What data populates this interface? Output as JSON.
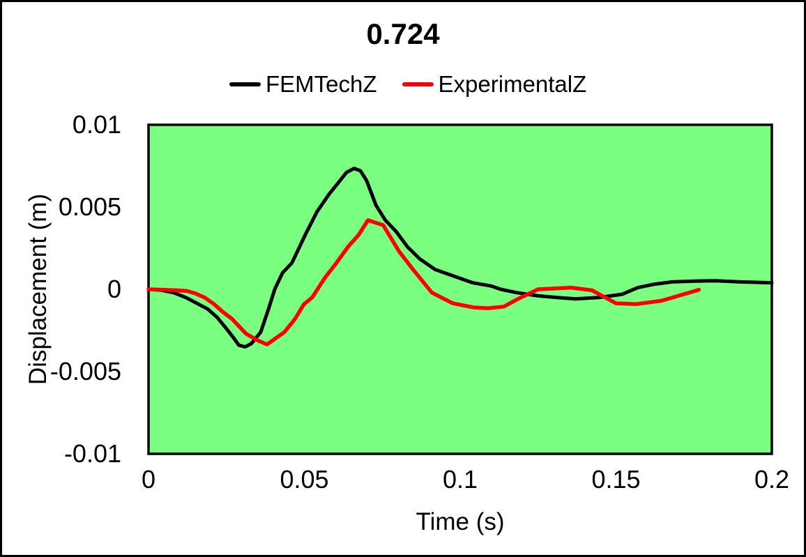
{
  "chart_data": {
    "type": "line",
    "title": "0.724",
    "xlabel": "Time (s)",
    "ylabel": "Displacement (m)",
    "xlim": [
      0,
      0.2
    ],
    "ylim": [
      -0.01,
      0.01
    ],
    "grid": false,
    "legend_position": "top",
    "plot_background": "#7bff80",
    "frame_color": "#000000",
    "x_ticks": {
      "values": [
        0,
        0.05,
        0.1,
        0.15,
        0.2
      ],
      "labels": [
        "0",
        "0.05",
        "0.1",
        "0.15",
        "0.2"
      ]
    },
    "y_ticks": {
      "values": [
        0.01,
        0.005,
        0,
        -0.005,
        -0.01
      ],
      "labels": [
        "0.01",
        "0.005",
        "0",
        "-0.005",
        "-0.01"
      ]
    },
    "series": [
      {
        "name": "FEMTechZ",
        "color": "#000000",
        "width": 5,
        "points": [
          [
            0,
            0
          ],
          [
            0.004,
            -5e-05
          ],
          [
            0.008,
            -0.0002
          ],
          [
            0.012,
            -0.0005
          ],
          [
            0.016,
            -0.0009
          ],
          [
            0.019,
            -0.0012
          ],
          [
            0.022,
            -0.0017
          ],
          [
            0.025,
            -0.0024
          ],
          [
            0.0275,
            -0.003
          ],
          [
            0.029,
            -0.0034
          ],
          [
            0.031,
            -0.0035
          ],
          [
            0.033,
            -0.0033
          ],
          [
            0.036,
            -0.0026
          ],
          [
            0.0385,
            -0.0012
          ],
          [
            0.0405,
            0.0
          ],
          [
            0.043,
            0.001
          ],
          [
            0.046,
            0.0016
          ],
          [
            0.048,
            0.0024
          ],
          [
            0.05,
            0.0032
          ],
          [
            0.054,
            0.0047
          ],
          [
            0.058,
            0.0058
          ],
          [
            0.061,
            0.0065
          ],
          [
            0.0635,
            0.0071
          ],
          [
            0.066,
            0.00735
          ],
          [
            0.068,
            0.0072
          ],
          [
            0.07,
            0.0066
          ],
          [
            0.073,
            0.0051
          ],
          [
            0.076,
            0.0042
          ],
          [
            0.0795,
            0.0035
          ],
          [
            0.083,
            0.0026
          ],
          [
            0.087,
            0.00185
          ],
          [
            0.092,
            0.0012
          ],
          [
            0.098,
            0.0008
          ],
          [
            0.104,
            0.0004
          ],
          [
            0.11,
            0.0002
          ],
          [
            0.113,
            0.0
          ],
          [
            0.118,
            -0.0002
          ],
          [
            0.125,
            -0.0004
          ],
          [
            0.131,
            -0.0005
          ],
          [
            0.137,
            -0.00058
          ],
          [
            0.1445,
            -0.0005
          ],
          [
            0.152,
            -0.0003
          ],
          [
            0.157,
            0.0001
          ],
          [
            0.162,
            0.0003
          ],
          [
            0.168,
            0.00045
          ],
          [
            0.175,
            0.0005
          ],
          [
            0.182,
            0.00052
          ],
          [
            0.19,
            0.00045
          ],
          [
            0.2,
            0.0004
          ]
        ]
      },
      {
        "name": "ExperimentalZ",
        "color": "#ff0000",
        "width": 5.5,
        "points": [
          [
            0,
            0
          ],
          [
            0.005,
            -3e-05
          ],
          [
            0.009,
            -6e-05
          ],
          [
            0.0123,
            -0.0001
          ],
          [
            0.015,
            -0.00025
          ],
          [
            0.018,
            -0.0005
          ],
          [
            0.021,
            -0.0009
          ],
          [
            0.024,
            -0.0014
          ],
          [
            0.0268,
            -0.0018
          ],
          [
            0.0313,
            -0.0027
          ],
          [
            0.035,
            -0.0031
          ],
          [
            0.038,
            -0.00335
          ],
          [
            0.0436,
            -0.0026
          ],
          [
            0.047,
            -0.0018
          ],
          [
            0.0499,
            -0.0009
          ],
          [
            0.0525,
            -0.0005
          ],
          [
            0.0566,
            0.0007
          ],
          [
            0.0603,
            0.0016
          ],
          [
            0.0641,
            0.0026
          ],
          [
            0.0674,
            0.0033
          ],
          [
            0.0704,
            0.0042
          ],
          [
            0.0753,
            0.0039
          ],
          [
            0.0804,
            0.0023
          ],
          [
            0.0849,
            0.0012
          ],
          [
            0.0909,
            -0.0002
          ],
          [
            0.0976,
            -0.00085
          ],
          [
            0.1043,
            -0.0011
          ],
          [
            0.109,
            -0.00115
          ],
          [
            0.114,
            -0.00105
          ],
          [
            0.1184,
            -0.0006
          ],
          [
            0.125,
            0.0
          ],
          [
            0.1356,
            0.0001
          ],
          [
            0.1423,
            -6e-05
          ],
          [
            0.15,
            -0.00085
          ],
          [
            0.1565,
            -0.0009
          ],
          [
            0.1645,
            -0.0007
          ],
          [
            0.17,
            -0.0004
          ],
          [
            0.1766,
            -3e-05
          ]
        ]
      }
    ]
  }
}
